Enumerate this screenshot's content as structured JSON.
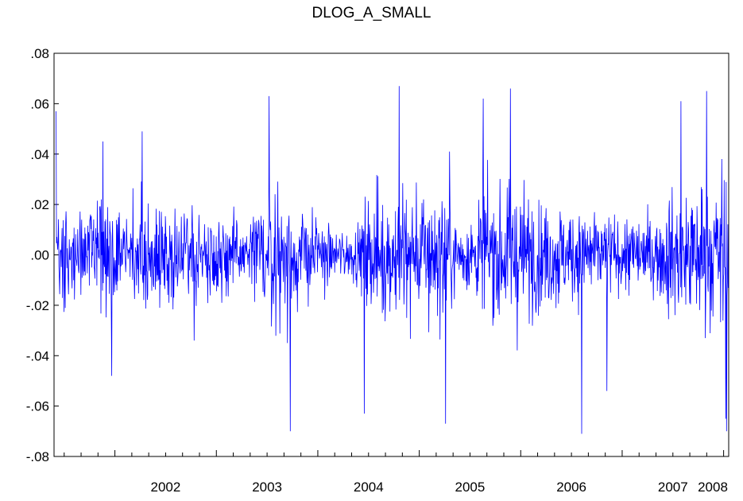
{
  "chart_data": {
    "type": "line",
    "title": "DLOG_A_SMALL",
    "xlabel": "",
    "ylabel": "",
    "xlim": [
      2001.4,
      2008.05
    ],
    "ylim": [
      -0.08,
      0.08
    ],
    "y_ticks": [
      0.08,
      0.06,
      0.04,
      0.02,
      0.0,
      -0.02,
      -0.04,
      -0.06,
      -0.08
    ],
    "y_tick_labels": [
      ".08",
      ".06",
      ".04",
      ".02",
      ".00",
      "-.02",
      "-.04",
      "-.06",
      "-.08"
    ],
    "x_tick_labels": [
      {
        "label": "2002",
        "x": 2002.0
      },
      {
        "label": "2003",
        "x": 2003.0
      },
      {
        "label": "2004",
        "x": 2004.0
      },
      {
        "label": "2005",
        "x": 2005.0
      },
      {
        "label": "2006",
        "x": 2006.0
      },
      {
        "label": "2007",
        "x": 2007.0
      },
      {
        "label": "2008",
        "x": 2008.0
      }
    ],
    "grid": false,
    "series_color": "#0000ff",
    "volatility_profile": [
      {
        "x": 2001.4,
        "amp": 0.02
      },
      {
        "x": 2001.6,
        "amp": 0.016
      },
      {
        "x": 2001.9,
        "amp": 0.02
      },
      {
        "x": 2002.2,
        "amp": 0.02
      },
      {
        "x": 2002.6,
        "amp": 0.017
      },
      {
        "x": 2003.0,
        "amp": 0.015
      },
      {
        "x": 2003.3,
        "amp": 0.013
      },
      {
        "x": 2003.55,
        "amp": 0.026
      },
      {
        "x": 2003.8,
        "amp": 0.019
      },
      {
        "x": 2004.1,
        "amp": 0.012
      },
      {
        "x": 2004.35,
        "amp": 0.009
      },
      {
        "x": 2004.5,
        "amp": 0.021
      },
      {
        "x": 2004.8,
        "amp": 0.03
      },
      {
        "x": 2005.0,
        "amp": 0.026
      },
      {
        "x": 2005.3,
        "amp": 0.022
      },
      {
        "x": 2005.5,
        "amp": 0.011
      },
      {
        "x": 2005.65,
        "amp": 0.027
      },
      {
        "x": 2006.0,
        "amp": 0.025
      },
      {
        "x": 2006.4,
        "amp": 0.019
      },
      {
        "x": 2006.8,
        "amp": 0.016
      },
      {
        "x": 2007.2,
        "amp": 0.013
      },
      {
        "x": 2007.4,
        "amp": 0.019
      },
      {
        "x": 2007.6,
        "amp": 0.026
      },
      {
        "x": 2007.85,
        "amp": 0.028
      },
      {
        "x": 2008.05,
        "amp": 0.034
      }
    ],
    "key_points": [
      {
        "x": 2001.42,
        "y": 0.057
      },
      {
        "x": 2001.88,
        "y": 0.045
      },
      {
        "x": 2001.97,
        "y": -0.048
      },
      {
        "x": 2002.27,
        "y": 0.049
      },
      {
        "x": 2002.78,
        "y": -0.034
      },
      {
        "x": 2003.52,
        "y": 0.063
      },
      {
        "x": 2003.73,
        "y": -0.07
      },
      {
        "x": 2003.7,
        "y": -0.035
      },
      {
        "x": 2004.46,
        "y": -0.063
      },
      {
        "x": 2004.8,
        "y": 0.067
      },
      {
        "x": 2005.26,
        "y": -0.067
      },
      {
        "x": 2005.3,
        "y": 0.041
      },
      {
        "x": 2005.63,
        "y": 0.062
      },
      {
        "x": 2005.9,
        "y": 0.066
      },
      {
        "x": 2006.6,
        "y": -0.071
      },
      {
        "x": 2006.85,
        "y": -0.054
      },
      {
        "x": 2007.58,
        "y": 0.061
      },
      {
        "x": 2007.83,
        "y": 0.065
      },
      {
        "x": 2008.03,
        "y": -0.07
      },
      {
        "x": 2008.02,
        "y": -0.065
      }
    ]
  }
}
